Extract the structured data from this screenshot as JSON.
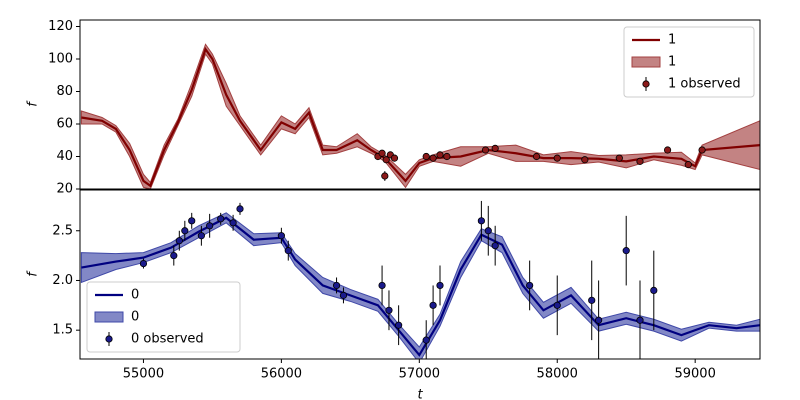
{
  "chart_data": [
    {
      "type": "line",
      "ylabel": "f",
      "legend": "upper right",
      "xlim": [
        54540,
        59470
      ],
      "ylim": [
        20,
        124
      ],
      "yticks": [
        20,
        40,
        60,
        80,
        100,
        120
      ],
      "x": [
        54550,
        54700,
        54800,
        54900,
        55000,
        55050,
        55150,
        55250,
        55350,
        55450,
        55500,
        55600,
        55700,
        55850,
        56000,
        56100,
        56200,
        56300,
        56400,
        56550,
        56650,
        56750,
        56900,
        57000,
        57100,
        57300,
        57500,
        57700,
        57900,
        58100,
        58300,
        58500,
        58700,
        58900,
        59000,
        59050,
        59470
      ],
      "series": [
        {
          "name": "1",
          "kind": "line",
          "color": "#800000",
          "values": [
            64,
            62,
            57,
            44,
            25,
            22,
            44,
            61,
            81,
            106,
            100,
            78,
            62,
            44,
            61,
            57,
            67,
            44,
            44,
            50,
            44,
            39,
            25,
            36,
            39,
            40,
            44,
            42,
            39,
            39,
            38.6,
            37,
            40,
            38.6,
            34,
            44,
            47
          ]
        },
        {
          "name": "1",
          "kind": "band",
          "color": "#a34040",
          "lower": [
            60,
            60,
            55,
            40,
            21,
            20,
            41,
            59,
            77,
            103,
            97,
            71,
            59,
            41,
            57,
            54,
            64,
            41,
            42,
            46,
            42,
            37,
            21,
            34,
            37,
            34,
            42,
            37,
            37,
            35,
            36.6,
            33,
            38,
            34.6,
            32,
            41,
            32
          ],
          "upper": [
            68,
            64,
            59,
            48,
            29,
            24,
            47,
            63,
            85,
            109,
            103,
            85,
            65,
            47,
            65,
            60,
            70,
            47,
            46,
            54,
            46,
            41,
            29,
            38,
            41,
            46,
            46,
            47,
            41,
            43,
            40.6,
            41,
            42,
            42.6,
            36,
            47,
            62
          ]
        },
        {
          "name": "1 observed",
          "kind": "errorbar",
          "color": "#8b1a1a",
          "x": [
            56700,
            56730,
            56760,
            56790,
            56820,
            56750,
            57050,
            57100,
            57150,
            57200,
            57480,
            57550,
            57850,
            58000,
            58200,
            58450,
            58600,
            58800,
            58950,
            59050
          ],
          "values": [
            40,
            42,
            38,
            41,
            39,
            28,
            40,
            39,
            41,
            40,
            44,
            45,
            40,
            39,
            38,
            39,
            37,
            44,
            35,
            44
          ],
          "errors": [
            1.5,
            1.5,
            1.5,
            1.5,
            1.5,
            3,
            1.5,
            1.5,
            1.5,
            1.5,
            1.5,
            1.5,
            1.5,
            1.5,
            1.5,
            1.5,
            1.5,
            1.5,
            1.5,
            1.5
          ]
        }
      ]
    },
    {
      "type": "line",
      "ylabel": "f",
      "xlabel": "t",
      "legend": "lower left",
      "xlim": [
        54540,
        59470
      ],
      "ylim": [
        1.21,
        2.91
      ],
      "xticks": [
        55000,
        56000,
        57000,
        58000,
        59000
      ],
      "yticks": [
        1.5,
        {
          "value": 2,
          "label": "2.0"
        },
        2.5
      ],
      "x": [
        54550,
        54800,
        55000,
        55200,
        55400,
        55600,
        55800,
        56000,
        56100,
        56300,
        56500,
        56700,
        56850,
        57000,
        57150,
        57300,
        57450,
        57600,
        57750,
        57900,
        58100,
        58300,
        58500,
        58700,
        58900,
        59100,
        59300,
        59470
      ],
      "series": [
        {
          "name": "0",
          "kind": "line",
          "color": "#000080",
          "values": [
            2.13,
            2.19,
            2.23,
            2.33,
            2.49,
            2.63,
            2.41,
            2.43,
            2.21,
            1.95,
            1.85,
            1.75,
            1.5,
            1.25,
            1.6,
            2.11,
            2.46,
            2.36,
            1.95,
            1.7,
            1.85,
            1.55,
            1.62,
            1.55,
            1.45,
            1.55,
            1.52,
            1.55
          ]
        },
        {
          "name": "0",
          "kind": "band",
          "color": "#3f48a8",
          "lower": [
            1.98,
            2.11,
            2.18,
            2.28,
            2.43,
            2.58,
            2.35,
            2.38,
            2.15,
            1.87,
            1.79,
            1.69,
            1.44,
            1.17,
            1.54,
            2.03,
            2.4,
            2.28,
            1.87,
            1.62,
            1.77,
            1.49,
            1.56,
            1.49,
            1.39,
            1.52,
            1.49,
            1.49
          ],
          "upper": [
            2.28,
            2.27,
            2.28,
            2.38,
            2.55,
            2.68,
            2.47,
            2.48,
            2.27,
            2.03,
            1.91,
            1.81,
            1.56,
            1.33,
            1.66,
            2.19,
            2.52,
            2.44,
            2.03,
            1.78,
            1.93,
            1.61,
            1.68,
            1.61,
            1.51,
            1.58,
            1.55,
            1.61
          ]
        },
        {
          "name": "0 observed",
          "kind": "errorbar",
          "color": "#1a1a8b",
          "x": [
            55000,
            55220,
            55260,
            55300,
            55350,
            55420,
            55480,
            55560,
            55650,
            55700,
            56000,
            56050,
            56400,
            56450,
            56730,
            56780,
            56850,
            57050,
            57100,
            57150,
            57450,
            57500,
            57550,
            57800,
            58000,
            58250,
            58300,
            58500,
            58600,
            58700
          ],
          "values": [
            2.17,
            2.25,
            2.4,
            2.5,
            2.6,
            2.45,
            2.55,
            2.62,
            2.58,
            2.72,
            2.45,
            2.3,
            1.95,
            1.85,
            1.95,
            1.7,
            1.55,
            1.4,
            1.75,
            1.95,
            2.6,
            2.5,
            2.35,
            1.95,
            1.75,
            1.8,
            1.6,
            2.3,
            1.6,
            1.9
          ],
          "errors": [
            0.05,
            0.1,
            0.1,
            0.1,
            0.08,
            0.1,
            0.12,
            0.06,
            0.08,
            0.06,
            0.08,
            0.1,
            0.08,
            0.08,
            0.2,
            0.2,
            0.2,
            0.2,
            0.2,
            0.2,
            0.2,
            0.25,
            0.2,
            0.25,
            0.3,
            0.4,
            0.4,
            0.35,
            0.4,
            0.4
          ]
        }
      ]
    }
  ]
}
